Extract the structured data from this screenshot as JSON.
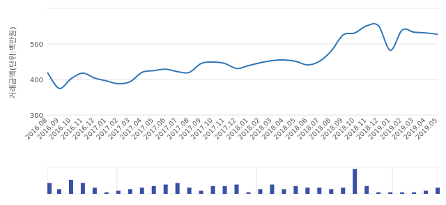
{
  "chart_data": [
    {
      "type": "line",
      "y_label": "거래금액(단위:백만원)",
      "categories": [
        "2016.08",
        "2016.09",
        "2016.10",
        "2016.11",
        "2016.12",
        "2017.01",
        "2017.02",
        "2017.03",
        "2017.04",
        "2017.05",
        "2017.06",
        "2017.07",
        "2017.08",
        "2017.09",
        "2017.10",
        "2017.11",
        "2017.12",
        "2018.01",
        "2018.02",
        "2018.03",
        "2018.04",
        "2018.05",
        "2018.06",
        "2018.07",
        "2018.08",
        "2018.09",
        "2018.10",
        "2018.11",
        "2018.12",
        "2019.01",
        "2019.02",
        "2019.03",
        "2019.04",
        "2019.05"
      ],
      "values": [
        420,
        375,
        402,
        418,
        404,
        396,
        388,
        394,
        420,
        425,
        429,
        422,
        420,
        445,
        449,
        445,
        431,
        439,
        447,
        453,
        455,
        451,
        441,
        451,
        480,
        525,
        531,
        551,
        551,
        482,
        539,
        533,
        531,
        527
      ],
      "color": "#2e75b6",
      "ylim": [
        300,
        600
      ],
      "yticks": [
        300,
        400,
        500
      ],
      "grid": true
    },
    {
      "type": "bar",
      "values": [
        7,
        3,
        9,
        7,
        4,
        1,
        2,
        3,
        4,
        5,
        6,
        7,
        4,
        2,
        5,
        5,
        6,
        1,
        3,
        6,
        3,
        5,
        4,
        4,
        3,
        4,
        16,
        5,
        1,
        1,
        1,
        1,
        2,
        4
      ],
      "color": "#3a4fa6",
      "ylim": [
        0,
        17
      ]
    }
  ]
}
